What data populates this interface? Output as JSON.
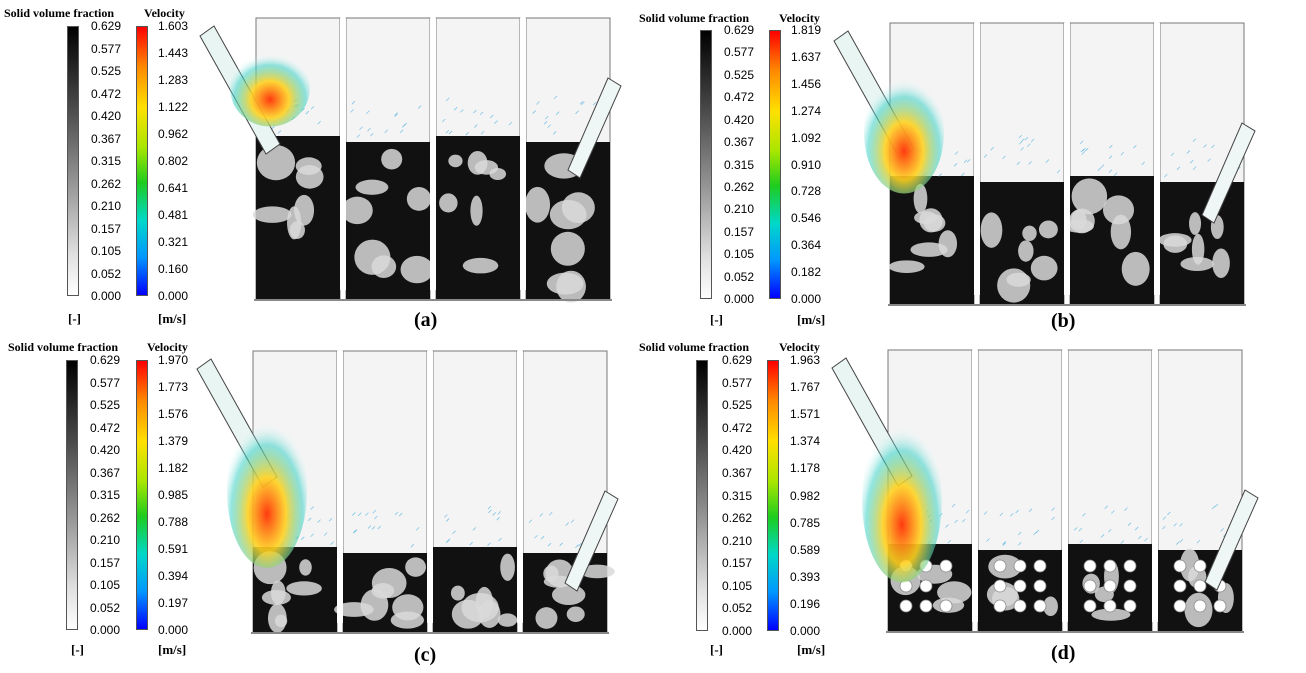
{
  "legend": {
    "solid_title": "Solid volume fraction",
    "velocity_title": "Velocity",
    "solid_unit": "[-]",
    "velocity_unit": "[m/s]",
    "solid_ticks": [
      "0.629",
      "0.577",
      "0.525",
      "0.472",
      "0.420",
      "0.367",
      "0.315",
      "0.262",
      "0.210",
      "0.157",
      "0.105",
      "0.052",
      "0.000"
    ]
  },
  "panels": [
    {
      "label": "(a)",
      "velocity_ticks": [
        "1.603",
        "1.443",
        "1.283",
        "1.122",
        "0.962",
        "0.802",
        "0.641",
        "0.481",
        "0.321",
        "0.160",
        "0.000"
      ]
    },
    {
      "label": "(b)",
      "velocity_ticks": [
        "1.819",
        "1.637",
        "1.456",
        "1.274",
        "1.092",
        "0.910",
        "0.728",
        "0.546",
        "0.364",
        "0.182",
        "0.000"
      ]
    },
    {
      "label": "(c)",
      "velocity_ticks": [
        "1.970",
        "1.773",
        "1.576",
        "1.379",
        "1.182",
        "0.985",
        "0.788",
        "0.591",
        "0.394",
        "0.197",
        "0.000"
      ]
    },
    {
      "label": "(d)",
      "velocity_ticks": [
        "1.963",
        "1.767",
        "1.571",
        "1.374",
        "1.178",
        "0.982",
        "0.785",
        "0.589",
        "0.393",
        "0.196",
        "0.000"
      ]
    }
  ],
  "colors": {
    "bed": "#111111",
    "freeboard": "#f4f4f4",
    "jet_core": "#ff3a10",
    "jet_mid": "#ffd21f",
    "jet_outer": "#39d0c8",
    "wall": "#777777"
  }
}
